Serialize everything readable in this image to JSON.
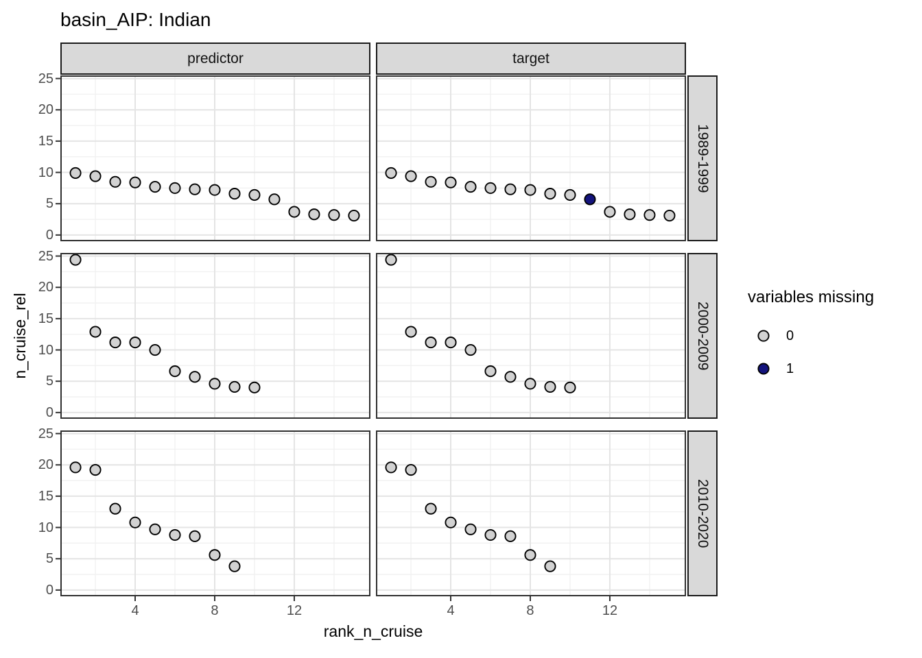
{
  "title": "basin_AIP: Indian",
  "chart_data": {
    "type": "scatter",
    "title": "basin_AIP: Indian",
    "xlabel": "rank_n_cruise",
    "ylabel": "n_cruise_rel",
    "x_ticks": [
      4,
      8,
      12
    ],
    "y_ticks": [
      25,
      20,
      15,
      10,
      5,
      0
    ],
    "xlim": [
      0.24,
      15.83
    ],
    "ylim": [
      -1.0,
      25.5
    ],
    "grid": "major-and-minor",
    "facet_columns": [
      "predictor",
      "target"
    ],
    "facet_rows": [
      "1989-1999",
      "2000-2009",
      "2010-2020"
    ],
    "legend": {
      "title": "variables missing",
      "position": "right",
      "entries": [
        {
          "label": "0",
          "fill": "#d2d2d2"
        },
        {
          "label": "1",
          "fill": "#14147d"
        }
      ]
    },
    "point_style": {
      "stroke": "#000000",
      "gray_fill": "#d2d2d2",
      "navy_fill": "#14147d"
    },
    "panels": [
      {
        "facet_col": "predictor",
        "facet_row": "1989-1999",
        "x": [
          1,
          2,
          3,
          4,
          5,
          6,
          7,
          8,
          9,
          10,
          11,
          12,
          13,
          14,
          15
        ],
        "y": [
          9.9,
          9.4,
          8.5,
          8.4,
          7.7,
          7.5,
          7.3,
          7.2,
          6.6,
          6.4,
          5.7,
          3.7,
          3.3,
          3.2,
          3.1
        ],
        "variables_missing": [
          0,
          0,
          0,
          0,
          0,
          0,
          0,
          0,
          0,
          0,
          0,
          0,
          0,
          0,
          0
        ]
      },
      {
        "facet_col": "target",
        "facet_row": "1989-1999",
        "x": [
          1,
          2,
          3,
          4,
          5,
          6,
          7,
          8,
          9,
          10,
          11,
          12,
          13,
          14,
          15
        ],
        "y": [
          9.9,
          9.4,
          8.5,
          8.4,
          7.7,
          7.5,
          7.3,
          7.2,
          6.6,
          6.4,
          5.7,
          3.7,
          3.3,
          3.2,
          3.1
        ],
        "variables_missing": [
          0,
          0,
          0,
          0,
          0,
          0,
          0,
          0,
          0,
          0,
          1,
          0,
          0,
          0,
          0
        ]
      },
      {
        "facet_col": "predictor",
        "facet_row": "2000-2009",
        "x": [
          1,
          2,
          3,
          4,
          5,
          6,
          7,
          8,
          9,
          10
        ],
        "y": [
          24.4,
          12.9,
          11.2,
          11.2,
          10.0,
          6.6,
          5.7,
          4.6,
          4.1,
          4.0
        ],
        "variables_missing": [
          0,
          0,
          0,
          0,
          0,
          0,
          0,
          0,
          0,
          0
        ]
      },
      {
        "facet_col": "target",
        "facet_row": "2000-2009",
        "x": [
          1,
          2,
          3,
          4,
          5,
          6,
          7,
          8,
          9,
          10
        ],
        "y": [
          24.4,
          12.9,
          11.2,
          11.2,
          10.0,
          6.6,
          5.7,
          4.6,
          4.1,
          4.0
        ],
        "variables_missing": [
          0,
          0,
          0,
          0,
          0,
          0,
          0,
          0,
          0,
          0
        ]
      },
      {
        "facet_col": "predictor",
        "facet_row": "2010-2020",
        "x": [
          1,
          2,
          3,
          4,
          5,
          6,
          7,
          8,
          9
        ],
        "y": [
          19.6,
          19.2,
          13.0,
          10.8,
          9.7,
          8.8,
          8.6,
          5.6,
          3.8
        ],
        "variables_missing": [
          0,
          0,
          0,
          0,
          0,
          0,
          0,
          0,
          0
        ]
      },
      {
        "facet_col": "target",
        "facet_row": "2010-2020",
        "x": [
          1,
          2,
          3,
          4,
          5,
          6,
          7,
          8,
          9
        ],
        "y": [
          19.6,
          19.2,
          13.0,
          10.8,
          9.7,
          8.8,
          8.6,
          5.6,
          3.8
        ],
        "variables_missing": [
          0,
          0,
          0,
          0,
          0,
          0,
          0,
          0,
          0
        ]
      }
    ]
  }
}
